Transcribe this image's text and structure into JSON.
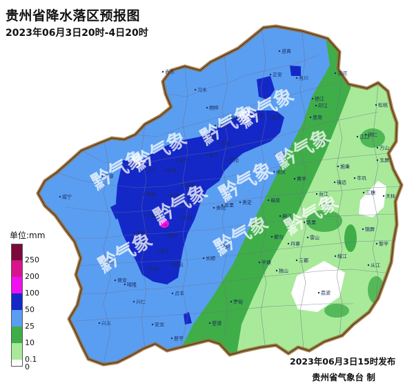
{
  "title": "贵州省降水落区预报图",
  "subtitle": "2023年06月3日20时-4日20时",
  "legend": {
    "unit": "单位:mm",
    "items": [
      {
        "label": "250",
        "color": "#7a0a3a"
      },
      {
        "label": "200",
        "color": "#d6148c"
      },
      {
        "label": "100",
        "color": "#ee10ee"
      },
      {
        "label": "50",
        "color": "#1428c8"
      },
      {
        "label": "25",
        "color": "#5a9ef2"
      },
      {
        "label": "10",
        "color": "#3fae48"
      },
      {
        "label": "0.1",
        "color": "#a8ea9a"
      },
      {
        "label": "0",
        "color": "#ffffff"
      }
    ]
  },
  "watermark": "黔气象",
  "issued": "2023年06月3日15时发布",
  "maker": "贵州省气象台 制",
  "cities": [
    "赤水",
    "习水",
    "桐梓",
    "正安",
    "道真",
    "务川",
    "沿河",
    "松桃",
    "印江",
    "德江",
    "凤冈",
    "湄潭",
    "绥阳",
    "遵义",
    "仁怀",
    "金沙",
    "黔西",
    "毕节",
    "大方",
    "赫章",
    "威宁",
    "纳雍",
    "织金",
    "水城",
    "六盘水",
    "盘州",
    "普安",
    "晴隆",
    "兴仁",
    "兴义",
    "安龙",
    "贞丰",
    "册亨",
    "望谟",
    "紫云",
    "镇宁",
    "关岭",
    "安顺",
    "平坝",
    "清镇",
    "修文",
    "息烽",
    "开阳",
    "贵阳",
    "龙里",
    "贵定",
    "惠水",
    "长顺",
    "罗甸",
    "平塘",
    "独山",
    "三都",
    "荔波",
    "都匀",
    "福泉",
    "麻江",
    "丹寨",
    "凯里",
    "黄平",
    "施秉",
    "镇远",
    "岑巩",
    "三穗",
    "天柱",
    "锦屏",
    "剑河",
    "台江",
    "雷山",
    "榕江",
    "从江",
    "黎平",
    "铜仁",
    "江口",
    "石阡",
    "思南",
    "余庆",
    "瓮安",
    "万山",
    "玉屏"
  ]
}
